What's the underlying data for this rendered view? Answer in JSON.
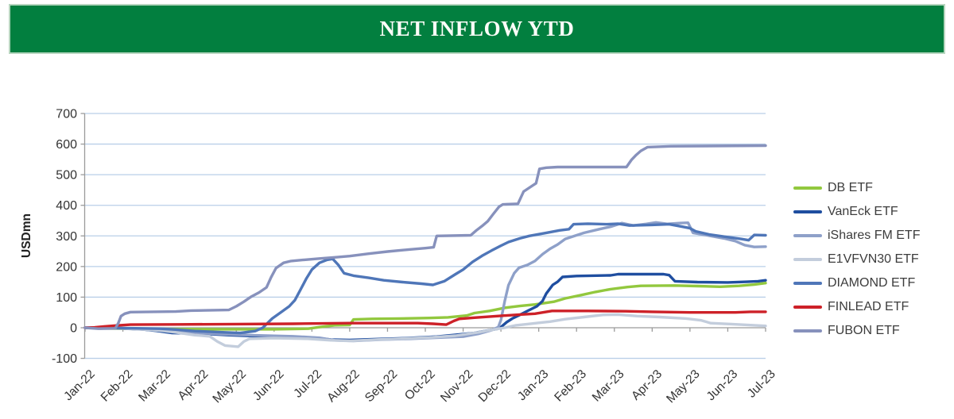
{
  "banner": {
    "title": "NET INFLOW YTD",
    "bg_color": "#027f3f",
    "border_color": "#b7d6bf",
    "text_color": "#fdfdf8"
  },
  "style": {
    "grid_color": "#b9cfe8",
    "axis_color": "#9b9b9b",
    "tick_label_color": "#333333",
    "line_width": 3.4
  },
  "chart_data": {
    "type": "line",
    "title": "NET INFLOW YTD",
    "xlabel": "",
    "ylabel": "USDmn",
    "ylim": [
      -100,
      700
    ],
    "yticks": [
      700,
      600,
      500,
      400,
      300,
      200,
      100,
      0,
      -100
    ],
    "grid": "horizontal-major",
    "legend_position": "right",
    "x_unit": "month-index from Jan-22 (0) to Jul-23 (18), fractional = intra-month date",
    "x_categories": [
      "Jan-22",
      "Feb-22",
      "Mar-22",
      "Apr-22",
      "May-22",
      "Jun-22",
      "Jul-22",
      "Aug-22",
      "Sep-22",
      "Oct-22",
      "Nov-22",
      "Dec-22",
      "Jan-23",
      "Feb-23",
      "Mar-23",
      "Apr-23",
      "May-23",
      "Jun-23",
      "Jul-23"
    ],
    "series": [
      {
        "name": "DB ETF",
        "color": "#92c83e",
        "points": [
          [
            0,
            0
          ],
          [
            0.5,
            -2
          ],
          [
            1.5,
            -4
          ],
          [
            3,
            -5
          ],
          [
            5,
            -5
          ],
          [
            5.9,
            -3
          ],
          [
            6.2,
            2
          ],
          [
            6.6,
            8
          ],
          [
            7.0,
            9
          ],
          [
            7.1,
            27
          ],
          [
            7.6,
            29
          ],
          [
            8.3,
            30
          ],
          [
            9.1,
            32
          ],
          [
            9.6,
            34
          ],
          [
            10.1,
            40
          ],
          [
            10.3,
            48
          ],
          [
            10.7,
            55
          ],
          [
            11.1,
            65
          ],
          [
            11.5,
            71
          ],
          [
            11.9,
            76
          ],
          [
            12.4,
            85
          ],
          [
            12.7,
            96
          ],
          [
            13.1,
            106
          ],
          [
            13.5,
            117
          ],
          [
            13.9,
            126
          ],
          [
            14.35,
            133
          ],
          [
            14.7,
            137
          ],
          [
            15.6,
            138
          ],
          [
            16.2,
            136
          ],
          [
            16.8,
            134
          ],
          [
            17.3,
            137
          ],
          [
            17.7,
            141
          ],
          [
            18,
            146
          ]
        ]
      },
      {
        "name": "VanEck ETF",
        "color": "#1f4ea0",
        "points": [
          [
            0,
            0
          ],
          [
            0.8,
            -1
          ],
          [
            1.5,
            -5
          ],
          [
            1.9,
            -10
          ],
          [
            2.3,
            -17
          ],
          [
            3.2,
            -20
          ],
          [
            3.8,
            -24
          ],
          [
            4.6,
            -28
          ],
          [
            5.4,
            -30
          ],
          [
            6.1,
            -33
          ],
          [
            6.5,
            -39
          ],
          [
            7.0,
            -40
          ],
          [
            7.7,
            -37
          ],
          [
            8.5,
            -34
          ],
          [
            9.3,
            -29
          ],
          [
            9.8,
            -23
          ],
          [
            10.3,
            -17
          ],
          [
            10.6,
            -10
          ],
          [
            10.9,
            -4
          ],
          [
            11.0,
            2
          ],
          [
            11.15,
            18
          ],
          [
            11.3,
            30
          ],
          [
            11.5,
            42
          ],
          [
            11.72,
            56
          ],
          [
            11.95,
            70
          ],
          [
            12.1,
            87
          ],
          [
            12.2,
            112
          ],
          [
            12.37,
            140
          ],
          [
            12.5,
            150
          ],
          [
            12.63,
            166
          ],
          [
            13.0,
            169
          ],
          [
            13.9,
            171
          ],
          [
            14.1,
            175
          ],
          [
            15.3,
            175
          ],
          [
            15.45,
            172
          ],
          [
            15.6,
            152
          ],
          [
            16.2,
            149
          ],
          [
            17.0,
            148
          ],
          [
            17.5,
            150
          ],
          [
            17.8,
            152
          ],
          [
            18,
            155
          ]
        ]
      },
      {
        "name": "iShares FM ETF",
        "color": "#8ea0c9",
        "points": [
          [
            0,
            0
          ],
          [
            0.9,
            -2
          ],
          [
            1.6,
            -6
          ],
          [
            2.2,
            -11
          ],
          [
            2.9,
            -16
          ],
          [
            3.6,
            -21
          ],
          [
            4.5,
            -25
          ],
          [
            5.5,
            -28
          ],
          [
            6.2,
            -33
          ],
          [
            6.6,
            -41
          ],
          [
            7.1,
            -43
          ],
          [
            7.8,
            -39
          ],
          [
            8.6,
            -36
          ],
          [
            9.4,
            -32
          ],
          [
            10.0,
            -29
          ],
          [
            10.4,
            -20
          ],
          [
            10.75,
            -8
          ],
          [
            10.93,
            2
          ],
          [
            11.0,
            25
          ],
          [
            11.1,
            87
          ],
          [
            11.2,
            139
          ],
          [
            11.35,
            178
          ],
          [
            11.48,
            196
          ],
          [
            11.7,
            205
          ],
          [
            11.9,
            218
          ],
          [
            12.1,
            240
          ],
          [
            12.3,
            258
          ],
          [
            12.5,
            272
          ],
          [
            12.7,
            290
          ],
          [
            12.95,
            300
          ],
          [
            13.2,
            310
          ],
          [
            13.6,
            322
          ],
          [
            13.9,
            330
          ],
          [
            14.2,
            342
          ],
          [
            14.5,
            334
          ],
          [
            14.85,
            339
          ],
          [
            15.1,
            344
          ],
          [
            15.4,
            339
          ],
          [
            15.75,
            342
          ],
          [
            15.95,
            343
          ],
          [
            16.08,
            310
          ],
          [
            16.5,
            301
          ],
          [
            16.9,
            292
          ],
          [
            17.2,
            283
          ],
          [
            17.45,
            270
          ],
          [
            17.7,
            264
          ],
          [
            18,
            265
          ]
        ]
      },
      {
        "name": "E1VFVN30 ETF",
        "color": "#c3cddc",
        "points": [
          [
            0,
            0
          ],
          [
            0.9,
            -1
          ],
          [
            1.5,
            -5
          ],
          [
            2.0,
            -9
          ],
          [
            2.4,
            -15
          ],
          [
            2.9,
            -24
          ],
          [
            3.3,
            -28
          ],
          [
            3.5,
            -45
          ],
          [
            3.7,
            -58
          ],
          [
            4.05,
            -62
          ],
          [
            4.2,
            -45
          ],
          [
            4.35,
            -36
          ],
          [
            5.0,
            -34
          ],
          [
            5.9,
            -36
          ],
          [
            6.5,
            -41
          ],
          [
            7.0,
            -43
          ],
          [
            7.7,
            -39
          ],
          [
            8.5,
            -35
          ],
          [
            9.2,
            -31
          ],
          [
            9.8,
            -26
          ],
          [
            10.4,
            -15
          ],
          [
            10.8,
            -6
          ],
          [
            11.1,
            0
          ],
          [
            11.4,
            8
          ],
          [
            11.7,
            12
          ],
          [
            12.0,
            16
          ],
          [
            12.3,
            20
          ],
          [
            12.7,
            28
          ],
          [
            13.2,
            35
          ],
          [
            13.7,
            42
          ],
          [
            14.1,
            43
          ],
          [
            14.6,
            38
          ],
          [
            15.2,
            35
          ],
          [
            15.9,
            30
          ],
          [
            16.3,
            24
          ],
          [
            16.55,
            15
          ],
          [
            17.1,
            12
          ],
          [
            17.7,
            8
          ],
          [
            18,
            6
          ]
        ]
      },
      {
        "name": "DIAMOND ETF",
        "color": "#4f76b8",
        "points": [
          [
            0,
            0
          ],
          [
            1.0,
            -1
          ],
          [
            2.0,
            -3
          ],
          [
            2.4,
            -6
          ],
          [
            2.9,
            -11
          ],
          [
            3.5,
            -14
          ],
          [
            4.1,
            -17
          ],
          [
            4.5,
            -11
          ],
          [
            4.7,
            0
          ],
          [
            4.95,
            30
          ],
          [
            5.2,
            52
          ],
          [
            5.4,
            70
          ],
          [
            5.55,
            90
          ],
          [
            5.7,
            125
          ],
          [
            5.85,
            160
          ],
          [
            6.0,
            190
          ],
          [
            6.2,
            212
          ],
          [
            6.4,
            222
          ],
          [
            6.55,
            225
          ],
          [
            6.7,
            205
          ],
          [
            6.85,
            178
          ],
          [
            7.1,
            170
          ],
          [
            7.5,
            163
          ],
          [
            7.9,
            155
          ],
          [
            8.4,
            149
          ],
          [
            8.9,
            144
          ],
          [
            9.2,
            140
          ],
          [
            9.5,
            152
          ],
          [
            9.8,
            175
          ],
          [
            10.0,
            190
          ],
          [
            10.25,
            215
          ],
          [
            10.5,
            235
          ],
          [
            10.75,
            252
          ],
          [
            11.0,
            268
          ],
          [
            11.2,
            280
          ],
          [
            11.5,
            292
          ],
          [
            11.75,
            300
          ],
          [
            12.2,
            310
          ],
          [
            12.55,
            318
          ],
          [
            12.8,
            322
          ],
          [
            12.92,
            338
          ],
          [
            13.3,
            340
          ],
          [
            13.8,
            338
          ],
          [
            14.1,
            340
          ],
          [
            14.4,
            334
          ],
          [
            15.0,
            336
          ],
          [
            15.45,
            338
          ],
          [
            15.8,
            330
          ],
          [
            16.0,
            325
          ],
          [
            16.15,
            315
          ],
          [
            16.5,
            305
          ],
          [
            17.0,
            296
          ],
          [
            17.35,
            290
          ],
          [
            17.55,
            286
          ],
          [
            17.7,
            303
          ],
          [
            18,
            302
          ]
        ]
      },
      {
        "name": "FINLEAD ETF",
        "color": "#cd2128",
        "points": [
          [
            0,
            0
          ],
          [
            0.25,
            1
          ],
          [
            0.5,
            4
          ],
          [
            0.8,
            7
          ],
          [
            1.2,
            10
          ],
          [
            2.5,
            11
          ],
          [
            4.0,
            12
          ],
          [
            5.5,
            13
          ],
          [
            7.0,
            15
          ],
          [
            8.8,
            15
          ],
          [
            9.2,
            13
          ],
          [
            9.55,
            10
          ],
          [
            9.75,
            22
          ],
          [
            9.9,
            29
          ],
          [
            10.3,
            33
          ],
          [
            10.9,
            38
          ],
          [
            11.5,
            43
          ],
          [
            11.9,
            46
          ],
          [
            12.35,
            55
          ],
          [
            13.3,
            55
          ],
          [
            14.3,
            54
          ],
          [
            15.0,
            52
          ],
          [
            16.0,
            50
          ],
          [
            17.2,
            50
          ],
          [
            17.6,
            52
          ],
          [
            18,
            52
          ]
        ]
      },
      {
        "name": "FUBON ETF",
        "color": "#8791bc",
        "points": [
          [
            0,
            0
          ],
          [
            0.35,
            -3
          ],
          [
            0.8,
            -2
          ],
          [
            0.88,
            15
          ],
          [
            0.95,
            38
          ],
          [
            1.05,
            46
          ],
          [
            1.2,
            51
          ],
          [
            2.4,
            53
          ],
          [
            2.8,
            56
          ],
          [
            3.8,
            58
          ],
          [
            4.0,
            70
          ],
          [
            4.2,
            85
          ],
          [
            4.4,
            102
          ],
          [
            4.6,
            115
          ],
          [
            4.8,
            132
          ],
          [
            4.92,
            165
          ],
          [
            5.05,
            195
          ],
          [
            5.25,
            212
          ],
          [
            5.45,
            218
          ],
          [
            5.8,
            222
          ],
          [
            6.2,
            226
          ],
          [
            6.6,
            230
          ],
          [
            7.0,
            234
          ],
          [
            7.5,
            242
          ],
          [
            8.0,
            249
          ],
          [
            8.6,
            256
          ],
          [
            9.0,
            260
          ],
          [
            9.22,
            263
          ],
          [
            9.3,
            300
          ],
          [
            10.2,
            302
          ],
          [
            10.35,
            318
          ],
          [
            10.5,
            332
          ],
          [
            10.65,
            348
          ],
          [
            10.8,
            372
          ],
          [
            10.95,
            395
          ],
          [
            11.05,
            403
          ],
          [
            11.45,
            405
          ],
          [
            11.6,
            445
          ],
          [
            11.78,
            460
          ],
          [
            11.93,
            472
          ],
          [
            12.02,
            519
          ],
          [
            12.2,
            523
          ],
          [
            12.5,
            525
          ],
          [
            14.32,
            525
          ],
          [
            14.45,
            548
          ],
          [
            14.58,
            565
          ],
          [
            14.7,
            578
          ],
          [
            14.88,
            590
          ],
          [
            15.5,
            593
          ],
          [
            18,
            595
          ]
        ]
      }
    ]
  }
}
